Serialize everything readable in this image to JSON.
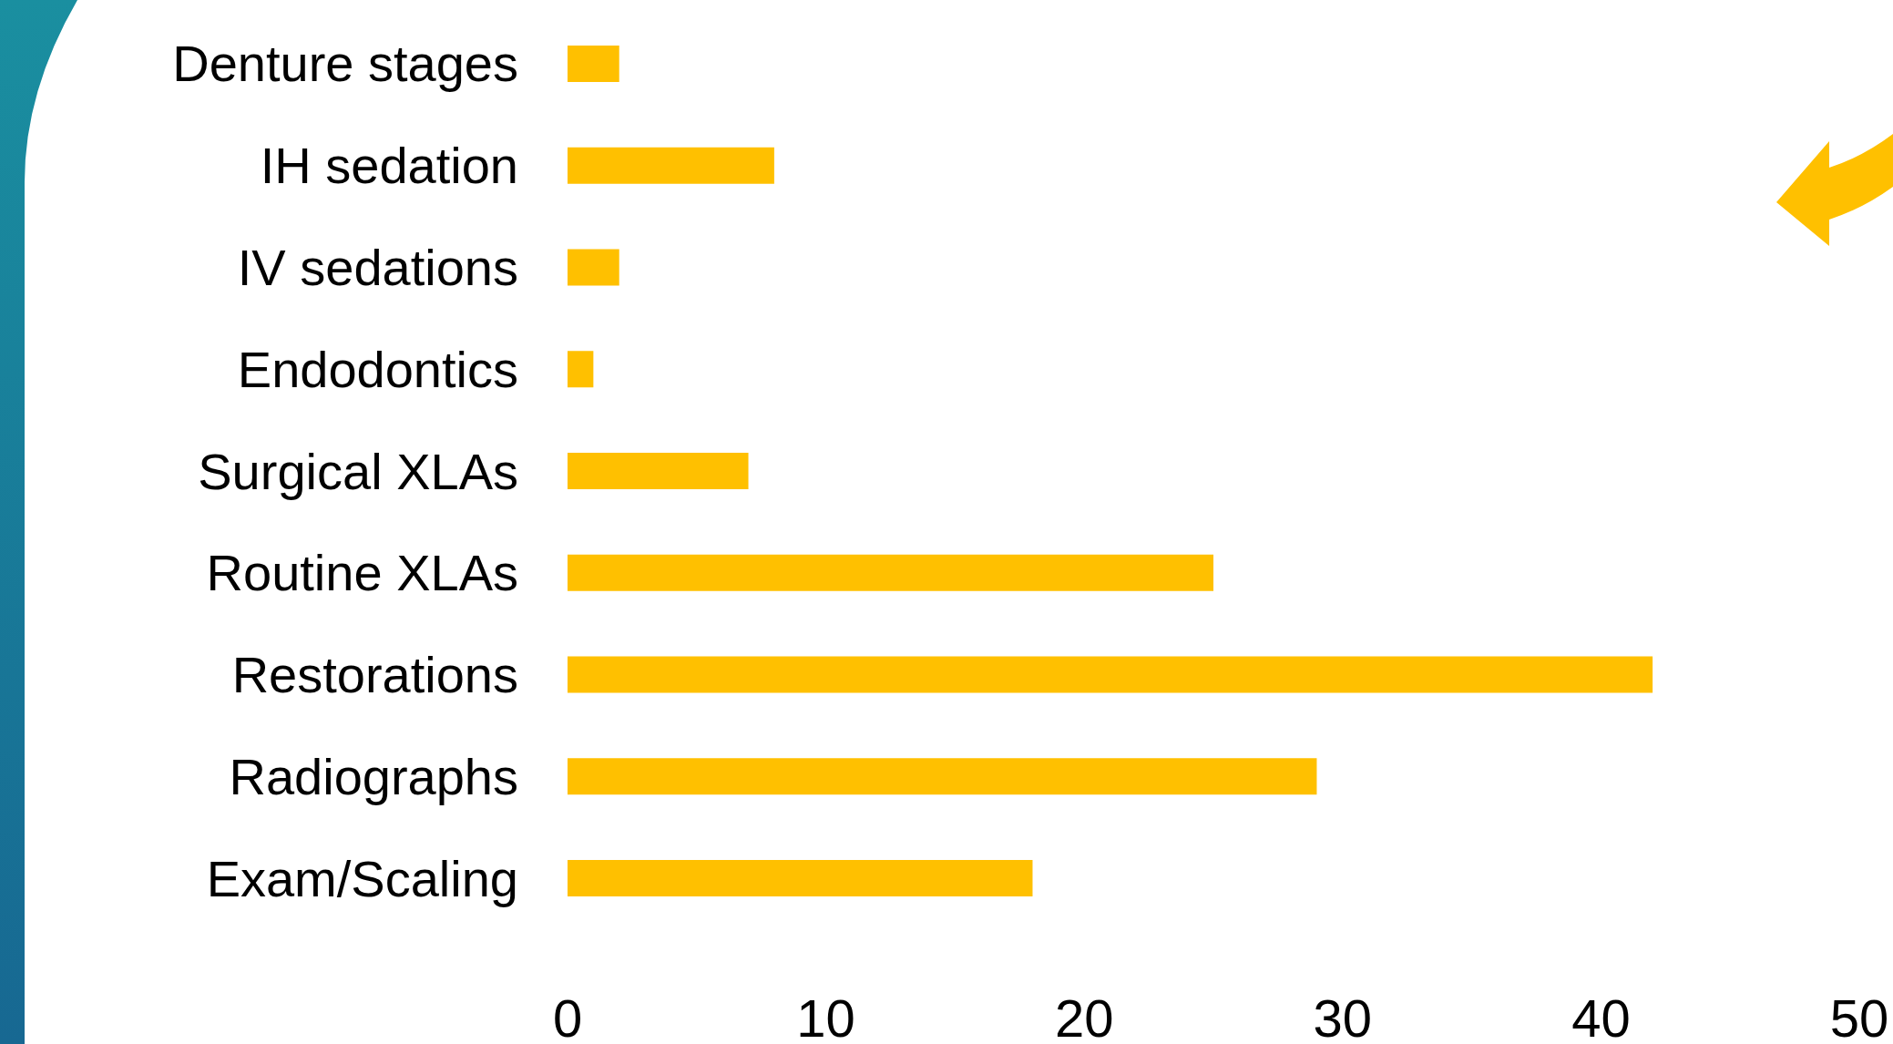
{
  "chart_data": {
    "type": "bar",
    "orientation": "horizontal",
    "categories": [
      "Denture stages",
      "IH sedation",
      "IV sedations",
      "Endodontics",
      "Surgical XLAs",
      "Routine XLAs",
      "Restorations",
      "Radiographs",
      "Exam/Scaling"
    ],
    "values": [
      2,
      8,
      2,
      1,
      7,
      25,
      42,
      29,
      18
    ],
    "color": "#ffc000",
    "xlim": [
      0,
      50
    ],
    "xticks": [
      0,
      10,
      20,
      30,
      40,
      50
    ]
  }
}
